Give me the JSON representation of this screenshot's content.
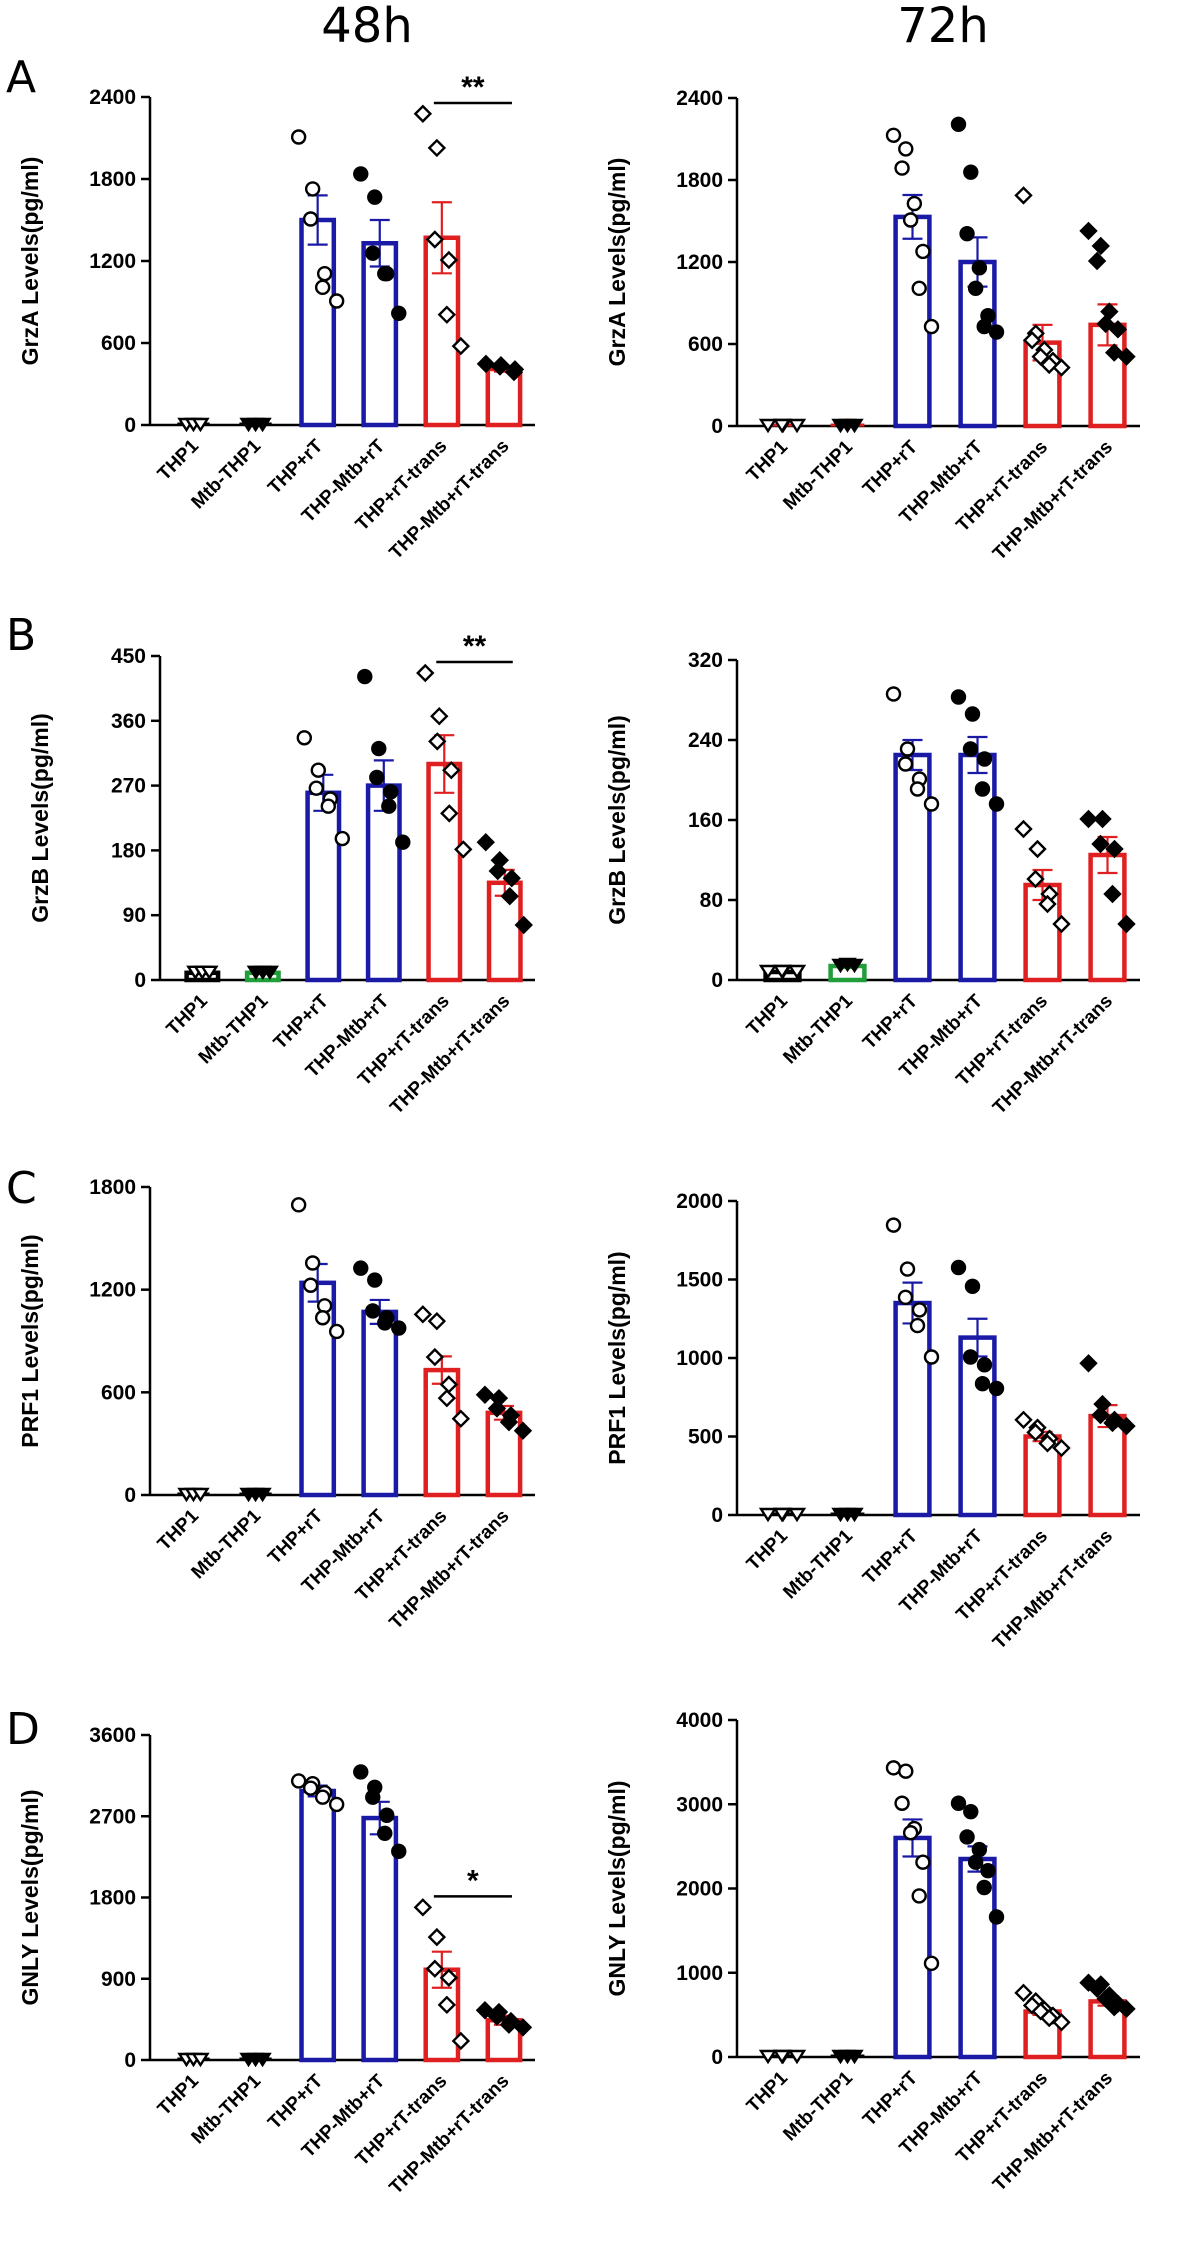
{
  "column_titles": [
    "48h",
    "72h"
  ],
  "row_letters": [
    "A",
    "B",
    "C",
    "D"
  ],
  "categories": [
    "THP1",
    "Mtb-THP1",
    "THP+rT",
    "THP-Mtb+rT",
    "THP+rT-trans",
    "THP-Mtb+rT-trans"
  ],
  "colors": {
    "blue": "#1a1aa6",
    "red": "#e02020",
    "green": "#1f9e3a",
    "black": "#000000"
  },
  "chart_data": [
    {
      "type": "bar",
      "panel": "A",
      "timepoint": "48h",
      "ylabel": "GrzA Levels(pg/ml)",
      "ylim": [
        0,
        2400
      ],
      "ticks": [
        "0",
        "600",
        "1200",
        "1800",
        "2400"
      ],
      "categories": [
        "THP1",
        "Mtb-THP1",
        "THP+rT",
        "THP-Mtb+rT",
        "THP+rT-trans",
        "THP-Mtb+rT-trans"
      ],
      "values": [
        0,
        0,
        1500,
        1330,
        1370,
        410
      ],
      "sem": [
        0,
        0,
        180,
        170,
        260,
        20
      ],
      "bar_colors": [
        "black",
        "black",
        "blue",
        "blue",
        "red",
        "red"
      ],
      "marker": [
        "tri-open",
        "tri-filled",
        "circle-open",
        "circle-filled",
        "diamond-open",
        "diamond-filled"
      ],
      "points": [
        [
          0,
          0,
          0
        ],
        [
          0,
          0,
          0
        ],
        [
          2100,
          1720,
          1500,
          1100,
          1000,
          900
        ],
        [
          1830,
          1660,
          1250,
          1100,
          1100,
          810
        ],
        [
          2270,
          2020,
          1350,
          1200,
          800,
          570
        ],
        [
          440,
          430,
          420,
          400,
          380
        ]
      ],
      "significance": [
        {
          "from": 4,
          "to": 5,
          "label": "**"
        }
      ]
    },
    {
      "type": "bar",
      "panel": "A",
      "timepoint": "72h",
      "ylabel": "GrzA Levels(pg/ml)",
      "ylim": [
        0,
        2400
      ],
      "ticks": [
        "0",
        "600",
        "1200",
        "1800",
        "2400"
      ],
      "categories": [
        "THP1",
        "Mtb-THP1",
        "THP+rT",
        "THP-Mtb+rT",
        "THP+rT-trans",
        "THP-Mtb+rT-trans"
      ],
      "values": [
        0,
        0,
        1530,
        1200,
        610,
        740
      ],
      "sem": [
        0,
        0,
        160,
        180,
        130,
        150
      ],
      "bar_colors": [
        "red",
        "red",
        "blue",
        "blue",
        "red",
        "red"
      ],
      "marker": [
        "tri-open",
        "tri-filled",
        "circle-open",
        "circle-filled",
        "diamond-open",
        "diamond-filled"
      ],
      "points": [
        [
          0,
          0,
          0,
          0
        ],
        [
          0,
          0,
          0
        ],
        [
          2120,
          2020,
          1880,
          1620,
          1500,
          1270,
          1000,
          720
        ],
        [
          2200,
          1850,
          1400,
          1150,
          1000,
          800,
          720,
          680
        ],
        [
          1680,
          670,
          620,
          550,
          500,
          470,
          440,
          420
        ],
        [
          1420,
          1310,
          1200,
          830,
          740,
          700,
          530,
          500
        ]
      ],
      "significance": []
    },
    {
      "type": "bar",
      "panel": "B",
      "timepoint": "48h",
      "ylabel": "GrzB Levels(pg/ml)",
      "ylim": [
        0,
        450
      ],
      "ticks": [
        "0",
        "90",
        "180",
        "270",
        "360",
        "450"
      ],
      "categories": [
        "THP1",
        "Mtb-THP1",
        "THP+rT",
        "THP-Mtb+rT",
        "THP+rT-trans",
        "THP-Mtb+rT-trans"
      ],
      "values": [
        10,
        10,
        260,
        270,
        300,
        135
      ],
      "sem": [
        0,
        0,
        25,
        35,
        40,
        18
      ],
      "bar_colors": [
        "black",
        "green",
        "blue",
        "blue",
        "red",
        "red"
      ],
      "marker": [
        "tri-open",
        "tri-filled",
        "circle-open",
        "circle-filled",
        "diamond-open",
        "diamond-filled"
      ],
      "points": [
        [
          10,
          10,
          10
        ],
        [
          10,
          10,
          10
        ],
        [
          335,
          290,
          265,
          250,
          240,
          195
        ],
        [
          420,
          320,
          280,
          260,
          240,
          190
        ],
        [
          425,
          365,
          330,
          290,
          230,
          180
        ],
        [
          190,
          165,
          150,
          140,
          115,
          75
        ]
      ],
      "significance": [
        {
          "from": 4,
          "to": 5,
          "label": "**"
        }
      ]
    },
    {
      "type": "bar",
      "panel": "B",
      "timepoint": "72h",
      "ylabel": "GrzB Levels(pg/ml)",
      "ylim": [
        0,
        320
      ],
      "ticks": [
        "0",
        "80",
        "160",
        "240",
        "320"
      ],
      "categories": [
        "THP1",
        "Mtb-THP1",
        "THP+rT",
        "THP-Mtb+rT",
        "THP+rT-trans",
        "THP-Mtb+rT-trans"
      ],
      "values": [
        8,
        14,
        225,
        225,
        95,
        125
      ],
      "sem": [
        0,
        2,
        15,
        18,
        15,
        18
      ],
      "bar_colors": [
        "black",
        "green",
        "blue",
        "blue",
        "red",
        "red"
      ],
      "marker": [
        "tri-open",
        "tri-filled",
        "circle-open",
        "circle-filled",
        "diamond-open",
        "diamond-filled"
      ],
      "points": [
        [
          8,
          8,
          8,
          8
        ],
        [
          14,
          15,
          14
        ],
        [
          285,
          230,
          215,
          200,
          190,
          175
        ],
        [
          282,
          265,
          230,
          220,
          190,
          175
        ],
        [
          150,
          130,
          100,
          85,
          75,
          55
        ],
        [
          160,
          160,
          135,
          130,
          85,
          55
        ]
      ],
      "significance": []
    },
    {
      "type": "bar",
      "panel": "C",
      "timepoint": "48h",
      "ylabel": "PRF1 Levels(pg/ml)",
      "ylim": [
        0,
        1800
      ],
      "ticks": [
        "0",
        "600",
        "1200",
        "1800"
      ],
      "categories": [
        "THP1",
        "Mtb-THP1",
        "THP+rT",
        "THP-Mtb+rT",
        "THP+rT-trans",
        "THP-Mtb+rT-trans"
      ],
      "values": [
        0,
        0,
        1240,
        1070,
        730,
        480
      ],
      "sem": [
        0,
        0,
        110,
        70,
        80,
        40
      ],
      "bar_colors": [
        "black",
        "black",
        "blue",
        "blue",
        "red",
        "red"
      ],
      "marker": [
        "tri-open",
        "tri-filled",
        "circle-open",
        "circle-filled",
        "diamond-open",
        "diamond-filled"
      ],
      "points": [
        [
          0,
          0,
          0
        ],
        [
          0,
          0,
          0
        ],
        [
          1690,
          1350,
          1220,
          1100,
          1030,
          950
        ],
        [
          1320,
          1250,
          1070,
          1030,
          1000,
          970
        ],
        [
          1050,
          1010,
          800,
          640,
          560,
          440
        ],
        [
          580,
          560,
          500,
          460,
          420,
          370
        ]
      ],
      "significance": []
    },
    {
      "type": "bar",
      "panel": "C",
      "timepoint": "72h",
      "ylabel": "PRF1 Levels(pg/ml)",
      "ylim": [
        0,
        2000
      ],
      "ticks": [
        "0",
        "500",
        "1000",
        "1500",
        "2000"
      ],
      "categories": [
        "THP1",
        "Mtb-THP1",
        "THP+rT",
        "THP-Mtb+rT",
        "THP+rT-trans",
        "THP-Mtb+rT-trans"
      ],
      "values": [
        0,
        0,
        1350,
        1130,
        500,
        630
      ],
      "sem": [
        0,
        0,
        130,
        120,
        30,
        70
      ],
      "bar_colors": [
        "black",
        "black",
        "blue",
        "blue",
        "red",
        "red"
      ],
      "marker": [
        "tri-open",
        "tri-filled",
        "circle-open",
        "circle-filled",
        "diamond-open",
        "diamond-filled"
      ],
      "points": [
        [
          0,
          0,
          0,
          0
        ],
        [
          0,
          0,
          0
        ],
        [
          1840,
          1560,
          1380,
          1300,
          1200,
          1000
        ],
        [
          1570,
          1450,
          1000,
          950,
          830,
          800
        ],
        [
          600,
          550,
          520,
          480,
          450,
          420
        ],
        [
          960,
          700,
          630,
          600,
          580,
          560
        ]
      ],
      "significance": []
    },
    {
      "type": "bar",
      "panel": "D",
      "timepoint": "48h",
      "ylabel": "GNLY Levels(pg/ml)",
      "ylim": [
        0,
        3600
      ],
      "ticks": [
        "0",
        "900",
        "1800",
        "2700",
        "3600"
      ],
      "categories": [
        "THP1",
        "Mtb-THP1",
        "THP+rT",
        "THP-Mtb+rT",
        "THP+rT-trans",
        "THP-Mtb+rT-trans"
      ],
      "values": [
        0,
        0,
        2980,
        2680,
        1000,
        440
      ],
      "sem": [
        0,
        0,
        60,
        180,
        200,
        50
      ],
      "bar_colors": [
        "black",
        "black",
        "blue",
        "blue",
        "red",
        "red"
      ],
      "marker": [
        "tri-open",
        "tri-filled",
        "circle-open",
        "circle-filled",
        "diamond-open",
        "diamond-filled"
      ],
      "points": [
        [
          0,
          0,
          0
        ],
        [
          0,
          0,
          0
        ],
        [
          3080,
          3050,
          3000,
          2950,
          2900,
          2820
        ],
        [
          3180,
          3010,
          2900,
          2700,
          2500,
          2300
        ],
        [
          1680,
          1350,
          1000,
          900,
          600,
          200
        ],
        [
          540,
          520,
          470,
          420,
          380,
          350
        ]
      ],
      "significance": [
        {
          "from": 4,
          "to": 5,
          "label": "*"
        }
      ]
    },
    {
      "type": "bar",
      "panel": "D",
      "timepoint": "72h",
      "ylabel": "GNLY Levels(pg/ml)",
      "ylim": [
        0,
        4000
      ],
      "ticks": [
        "0",
        "1000",
        "2000",
        "3000",
        "4000"
      ],
      "categories": [
        "THP1",
        "Mtb-THP1",
        "THP+rT",
        "THP-Mtb+rT",
        "THP+rT-trans",
        "THP-Mtb+rT-trans"
      ],
      "values": [
        0,
        0,
        2600,
        2350,
        540,
        660
      ],
      "sem": [
        0,
        0,
        220,
        150,
        40,
        50
      ],
      "bar_colors": [
        "black",
        "black",
        "blue",
        "blue",
        "red",
        "red"
      ],
      "marker": [
        "tri-open",
        "tri-filled",
        "circle-open",
        "circle-filled",
        "diamond-open",
        "diamond-filled"
      ],
      "points": [
        [
          0,
          0,
          0,
          0
        ],
        [
          0,
          0,
          0
        ],
        [
          3420,
          3380,
          3000,
          2700,
          2650,
          2300,
          1900,
          1100
        ],
        [
          3000,
          2900,
          2600,
          2450,
          2300,
          2200,
          2000,
          1650
        ],
        [
          750,
          650,
          600,
          550,
          530,
          480,
          450,
          400
        ],
        [
          870,
          850,
          800,
          720,
          680,
          620,
          580,
          560
        ]
      ],
      "significance": []
    }
  ]
}
